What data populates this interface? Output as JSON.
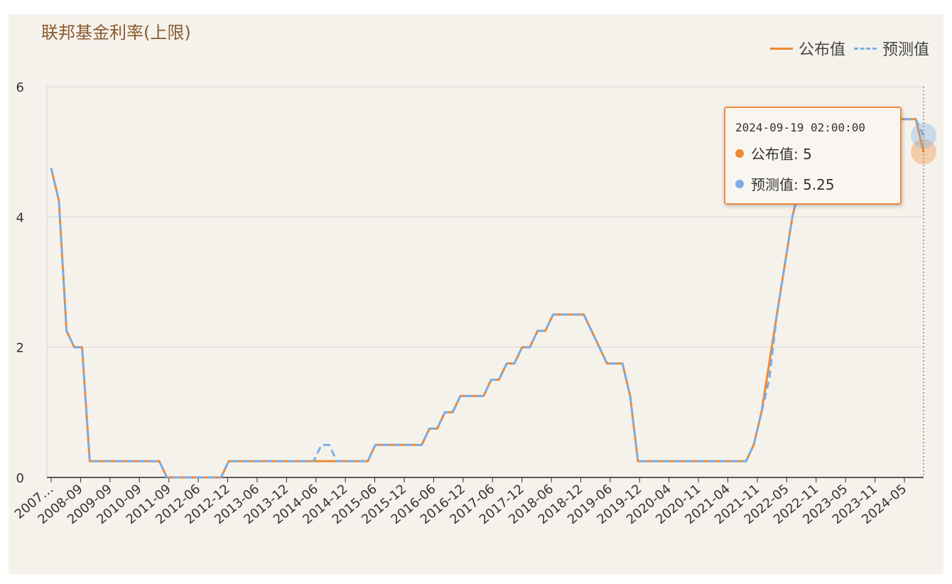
{
  "chart_data": {
    "type": "line",
    "title": "联邦基金利率(上限)",
    "xlabel": "",
    "ylabel": "",
    "ylim": [
      0,
      6
    ],
    "yticks": [
      0,
      2,
      4,
      6
    ],
    "grid": true,
    "legend_position": "top-right",
    "x_tick_labels": [
      "2007…",
      "2008-09",
      "2009-09",
      "2010-09",
      "2011-09",
      "2012-06",
      "2012-12",
      "2013-06",
      "2013-12",
      "2014-06",
      "2014-12",
      "2015-06",
      "2015-12",
      "2016-06",
      "2016-12",
      "2017-06",
      "2017-12",
      "2018-06",
      "2018-12",
      "2019-06",
      "2019-12",
      "2020-04",
      "2020-11",
      "2021-04",
      "2021-11",
      "2022-05",
      "2022-11",
      "2023-05",
      "2023-11",
      "2024-05"
    ],
    "series": [
      {
        "name": "公布值",
        "color": "#f0882f",
        "style": "solid",
        "values": [
          4.75,
          4.25,
          2.25,
          2.0,
          2.0,
          0.25,
          0.25,
          0.25,
          0.25,
          0.25,
          0.25,
          0.25,
          0.25,
          0.25,
          0.25,
          0,
          0,
          0,
          0,
          0,
          0,
          0,
          0,
          0.25,
          0.25,
          0.25,
          0.25,
          0.25,
          0.25,
          0.25,
          0.25,
          0.25,
          0.25,
          0.25,
          0.25,
          0.25,
          0.25,
          0.25,
          0.25,
          0.25,
          0.25,
          0.25,
          0.5,
          0.5,
          0.5,
          0.5,
          0.5,
          0.5,
          0.5,
          0.75,
          0.75,
          1.0,
          1.0,
          1.25,
          1.25,
          1.25,
          1.25,
          1.5,
          1.5,
          1.75,
          1.75,
          2.0,
          2.0,
          2.25,
          2.25,
          2.5,
          2.5,
          2.5,
          2.5,
          2.5,
          2.25,
          2.0,
          1.75,
          1.75,
          1.75,
          1.25,
          0.25,
          0.25,
          0.25,
          0.25,
          0.25,
          0.25,
          0.25,
          0.25,
          0.25,
          0.25,
          0.25,
          0.25,
          0.25,
          0.25,
          0.25,
          0.5,
          1.0,
          1.75,
          2.5,
          3.25,
          4.0,
          4.5,
          4.75,
          5.0,
          5.25,
          5.5,
          5.5,
          5.5,
          5.5,
          5.5,
          5.5,
          5.5,
          5.5,
          5.5,
          5.5,
          5.5,
          5.5,
          5.0
        ]
      },
      {
        "name": "预测值",
        "color": "#7aaee8",
        "style": "dashed",
        "values": [
          4.75,
          4.25,
          2.25,
          2.0,
          2.0,
          0.25,
          0.25,
          0.25,
          0.25,
          0.25,
          0.25,
          0.25,
          0.25,
          0.25,
          0.25,
          0,
          0,
          0,
          0,
          0,
          0,
          0,
          0,
          0.25,
          0.25,
          0.25,
          0.25,
          0.25,
          0.25,
          0.25,
          0.25,
          0.25,
          0.25,
          0.25,
          0.25,
          0.5,
          0.5,
          0.25,
          0.25,
          0.25,
          0.25,
          0.25,
          0.5,
          0.5,
          0.5,
          0.5,
          0.5,
          0.5,
          0.5,
          0.75,
          0.75,
          1.0,
          1.0,
          1.25,
          1.25,
          1.25,
          1.25,
          1.5,
          1.5,
          1.75,
          1.75,
          2.0,
          2.0,
          2.25,
          2.25,
          2.5,
          2.5,
          2.5,
          2.5,
          2.5,
          2.25,
          2.0,
          1.75,
          1.75,
          1.75,
          1.25,
          0.25,
          0.25,
          0.25,
          0.25,
          0.25,
          0.25,
          0.25,
          0.25,
          0.25,
          0.25,
          0.25,
          0.25,
          0.25,
          0.25,
          0.25,
          0.5,
          1.0,
          1.5,
          2.5,
          3.25,
          4.0,
          4.5,
          4.75,
          5.0,
          5.25,
          5.5,
          5.5,
          5.5,
          5.5,
          5.5,
          5.5,
          5.5,
          5.5,
          5.5,
          5.5,
          5.5,
          5.5,
          5.25
        ]
      }
    ]
  },
  "tooltip": {
    "time": "2024-09-19 02:00:00",
    "rows": [
      {
        "label": "公布值: 5",
        "color": "#f0882f"
      },
      {
        "label": "预测值: 5.25",
        "color": "#7aaee8"
      }
    ]
  }
}
